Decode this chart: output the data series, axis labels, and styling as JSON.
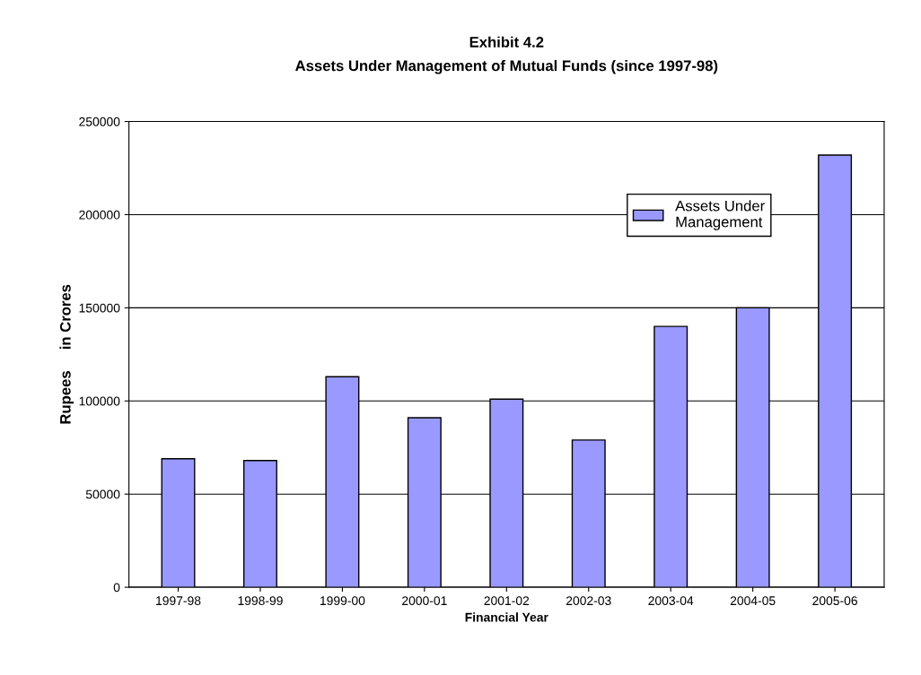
{
  "chart_data": {
    "type": "bar",
    "title": "Exhibit 4.2",
    "subtitle": "Assets Under Management of Mutual Funds (since 1997-98)",
    "xlabel": "Financial Year",
    "ylabel": "Rupees     in Crores",
    "categories": [
      "1997-98",
      "1998-99",
      "1999-00",
      "2000-01",
      "2001-02",
      "2002-03",
      "2003-04",
      "2004-05",
      "2005-06"
    ],
    "series": [
      {
        "name": "Assets Under\nManagement",
        "color": "#9999ff",
        "values": [
          69000,
          68000,
          113000,
          91000,
          101000,
          79000,
          140000,
          150000,
          232000
        ]
      }
    ],
    "ylim": [
      0,
      250000
    ],
    "yticks": [
      0,
      50000,
      100000,
      150000,
      200000,
      250000
    ],
    "grid": "y",
    "legend": "top right"
  }
}
